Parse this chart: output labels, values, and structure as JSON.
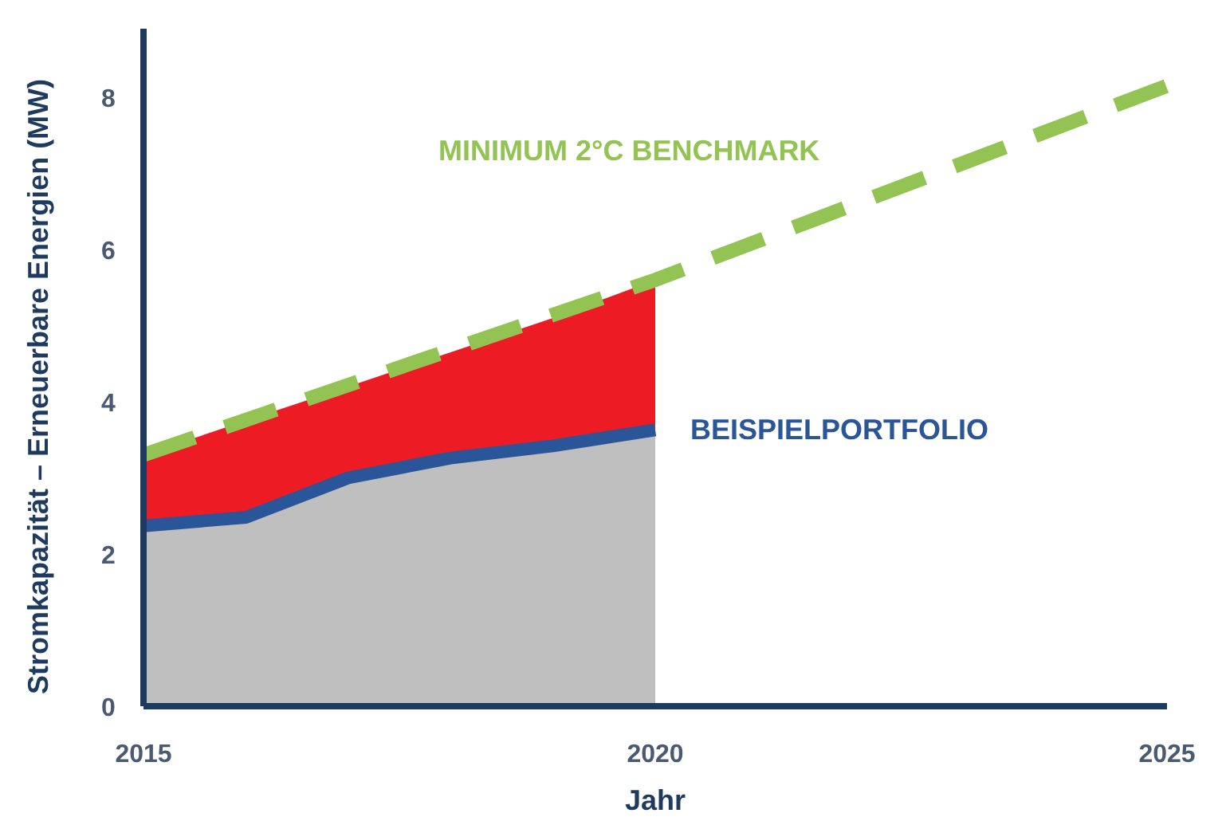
{
  "chart_data": {
    "type": "area",
    "xlabel": "Jahr",
    "ylabel": "Stromkapazität – Erneuerbare Energien (MW)",
    "xlim": [
      2015,
      2025
    ],
    "xticks": [
      2015,
      2020,
      2025
    ],
    "ylim": [
      0,
      8.9
    ],
    "yticks": [
      0,
      2,
      4,
      6,
      8
    ],
    "grid": false,
    "legend": false,
    "series": [
      {
        "type": "area",
        "color": "#ed1c24",
        "x": [
          2015,
          2016,
          2017,
          2018,
          2019,
          2020
        ],
        "values": [
          3.3,
          3.75,
          4.2,
          4.65,
          5.1,
          5.6
        ]
      },
      {
        "name": "BEISPIELPORTFOLIO",
        "color": "#2a5599",
        "x": [
          2015,
          2016,
          2017,
          2018,
          2019,
          2020
        ],
        "values": [
          2.37,
          2.48,
          3.0,
          3.26,
          3.42,
          3.63
        ]
      },
      {
        "type": "line",
        "name": "MINIMUM 2°C BENCHMARK",
        "color": "#92c353",
        "line_style": "dashed",
        "x": [
          2015,
          2020,
          2025
        ],
        "values": [
          3.3,
          5.6,
          8.15
        ]
      }
    ]
  }
}
